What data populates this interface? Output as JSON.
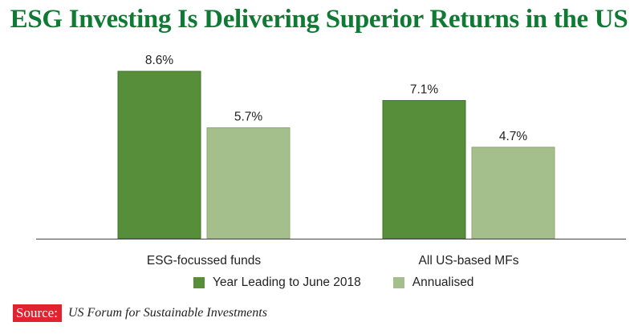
{
  "title": "ESG Investing Is Delivering Superior Returns in the US",
  "colors": {
    "title": "#0e7a34",
    "series1": "#568e3a",
    "series1_edge": "#3f7428",
    "series2": "#a5bf8c",
    "series2_edge": "#8eab75",
    "axis": "#444444",
    "source_bg": "#e0232e"
  },
  "source": {
    "label": "Source:",
    "text": "US Forum for Sustainable Investments"
  },
  "chart_data": {
    "type": "bar",
    "categories": [
      "ESG-focussed funds",
      "All US-based MFs"
    ],
    "series": [
      {
        "name": "Year Leading to June 2018",
        "values": [
          8.6,
          7.1
        ],
        "labels": [
          "8.6%",
          "7.1%"
        ]
      },
      {
        "name": "Annualised",
        "values": [
          5.7,
          4.7
        ],
        "labels": [
          "5.7%",
          "4.7%"
        ]
      }
    ],
    "ylim": [
      0,
      10
    ],
    "grid": false,
    "legend_position": "bottom"
  }
}
